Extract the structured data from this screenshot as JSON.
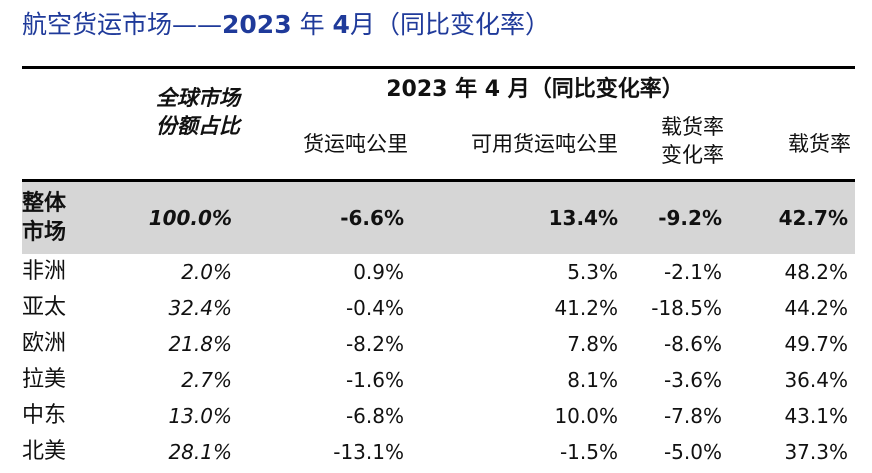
{
  "title": {
    "prefix": "航空货运市场——",
    "year": "2023",
    "mid": "年",
    "month": "4",
    "suffix": "月（同比变化率）"
  },
  "header": {
    "share_line1": "全球市场",
    "share_line2": "份额占比",
    "group": "2023 年 4 月（同比变化率）",
    "col_ctk": "货运吨公里",
    "col_actk": "可用货运吨公里",
    "col_lf_change_line1": "载货率",
    "col_lf_change_line2": "变化率",
    "col_lf": "载货率"
  },
  "overall": {
    "region_line1": "整体",
    "region_line2": "市场",
    "share": "100.0%",
    "ctk": "-6.6%",
    "actk": "13.4%",
    "lf_change": "-9.2%",
    "lf": "42.7%"
  },
  "rows": [
    {
      "region": "非洲",
      "share": "2.0%",
      "ctk": "0.9%",
      "actk": "5.3%",
      "lf_change": "-2.1%",
      "lf": "48.2%"
    },
    {
      "region": "亚太",
      "share": "32.4%",
      "ctk": "-0.4%",
      "actk": "41.2%",
      "lf_change": "-18.5%",
      "lf": "44.2%"
    },
    {
      "region": "欧洲",
      "share": "21.8%",
      "ctk": "-8.2%",
      "actk": "7.8%",
      "lf_change": "-8.6%",
      "lf": "49.7%"
    },
    {
      "region": "拉美",
      "share": "2.7%",
      "ctk": "-1.6%",
      "actk": "8.1%",
      "lf_change": "-3.6%",
      "lf": "36.4%"
    },
    {
      "region": "中东",
      "share": "13.0%",
      "ctk": "-6.8%",
      "actk": "10.0%",
      "lf_change": "-7.8%",
      "lf": "43.1%"
    },
    {
      "region": "北美",
      "share": "28.1%",
      "ctk": "-13.1%",
      "actk": "-1.5%",
      "lf_change": "-5.0%",
      "lf": "37.3%"
    }
  ],
  "colors": {
    "title": "#1f3a9a",
    "overall_band": "#d6d6d6"
  }
}
